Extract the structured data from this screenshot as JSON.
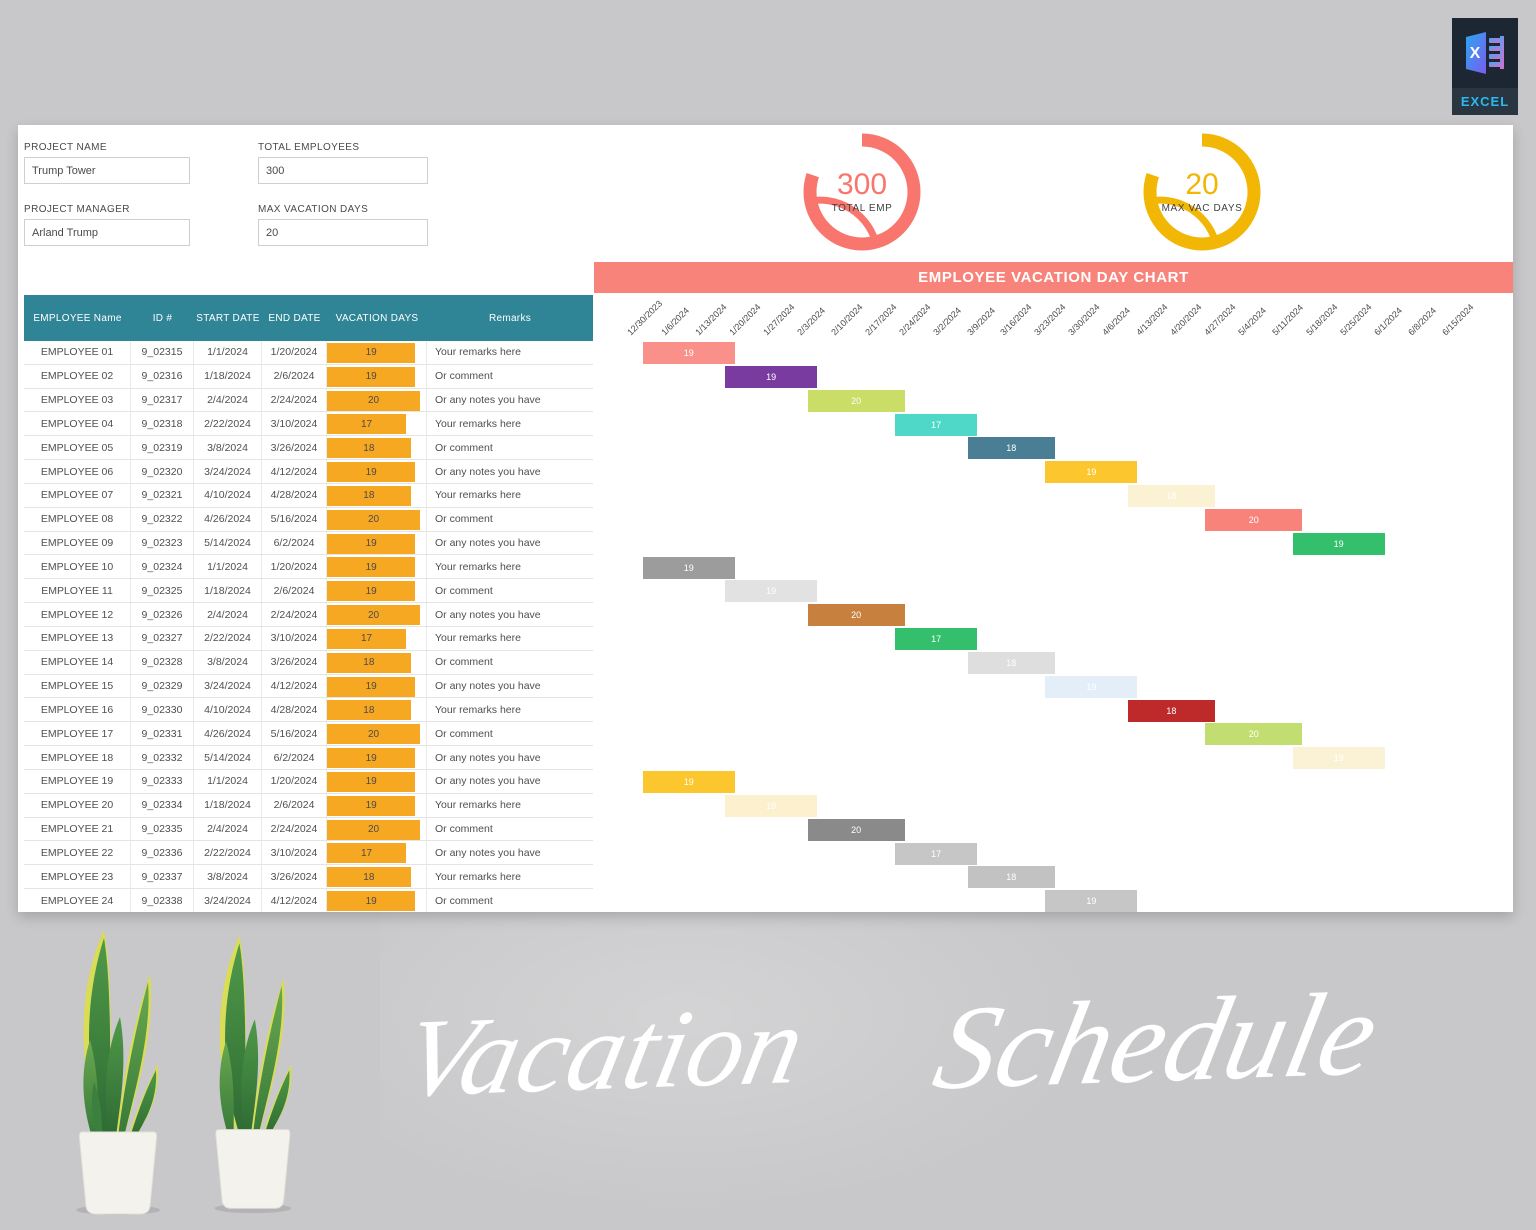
{
  "colors": {
    "accent_banner": "#f8837b",
    "table_header": "#2f8495",
    "databar": "#f7a823",
    "kpi_red": "#f8766d",
    "kpi_yellow": "#f2b705",
    "page_bg": "#c8c7c9"
  },
  "logo": {
    "label": "EXCEL",
    "icon": "excel-x-sheet-icon"
  },
  "watermark": {
    "word1": "Vacation",
    "word2": "Schedule"
  },
  "form": {
    "fields": [
      {
        "label": "PROJECT NAME",
        "value": "Trump Tower"
      },
      {
        "label": "TOTAL EMPLOYEES",
        "value": "300"
      },
      {
        "label": "PROJECT MANAGER",
        "value": "Arland Trump"
      },
      {
        "label": "MAX VACATION DAYS",
        "value": "20"
      }
    ]
  },
  "kpis": [
    {
      "value": "300",
      "label": "TOTAL EMP",
      "color": "#f8766d"
    },
    {
      "value": "20",
      "label": "MAX VAC DAYS",
      "color": "#f2b705"
    }
  ],
  "table": {
    "headers": [
      "EMPLOYEE Name",
      "ID #",
      "START DATE",
      "END DATE",
      "VACATION DAYS",
      "Remarks"
    ],
    "max_vacation_days": 20
  },
  "chart_data": {
    "type": "gantt",
    "title": "EMPLOYEE VACATION DAY CHART",
    "x_axis_labels": [
      "12/30/2023",
      "1/6/2024",
      "1/13/2024",
      "1/20/2024",
      "1/27/2024",
      "2/3/2024",
      "2/10/2024",
      "2/17/2024",
      "2/24/2024",
      "3/2/2024",
      "3/9/2024",
      "3/16/2024",
      "3/23/2024",
      "3/30/2024",
      "4/6/2024",
      "4/13/2024",
      "4/20/2024",
      "4/27/2024",
      "5/4/2024",
      "5/11/2024",
      "5/18/2024",
      "5/25/2024",
      "6/1/2024",
      "6/8/2024",
      "6/15/2024"
    ],
    "bars": [
      {
        "name": "EMPLOYEE 01",
        "id": "9_02315",
        "start": "1/1/2024",
        "end": "1/20/2024",
        "days": 19,
        "remark": "Your remarks here",
        "color": "#f9918a"
      },
      {
        "name": "EMPLOYEE 02",
        "id": "9_02316",
        "start": "1/18/2024",
        "end": "2/6/2024",
        "days": 19,
        "remark": "Or comment",
        "color": "#7a3ba0"
      },
      {
        "name": "EMPLOYEE 03",
        "id": "9_02317",
        "start": "2/4/2024",
        "end": "2/24/2024",
        "days": 20,
        "remark": "Or any notes you have",
        "color": "#c9dd67"
      },
      {
        "name": "EMPLOYEE 04",
        "id": "9_02318",
        "start": "2/22/2024",
        "end": "3/10/2024",
        "days": 17,
        "remark": "Your remarks here",
        "color": "#4fd8c8"
      },
      {
        "name": "EMPLOYEE 05",
        "id": "9_02319",
        "start": "3/8/2024",
        "end": "3/26/2024",
        "days": 18,
        "remark": "Or comment",
        "color": "#4a7e95"
      },
      {
        "name": "EMPLOYEE 06",
        "id": "9_02320",
        "start": "3/24/2024",
        "end": "4/12/2024",
        "days": 19,
        "remark": "Or any notes you have",
        "color": "#fcc62f"
      },
      {
        "name": "EMPLOYEE 07",
        "id": "9_02321",
        "start": "4/10/2024",
        "end": "4/28/2024",
        "days": 18,
        "remark": "Your remarks here",
        "color": "#fbf2d4"
      },
      {
        "name": "EMPLOYEE 08",
        "id": "9_02322",
        "start": "4/26/2024",
        "end": "5/16/2024",
        "days": 20,
        "remark": "Or comment",
        "color": "#f8837b"
      },
      {
        "name": "EMPLOYEE 09",
        "id": "9_02323",
        "start": "5/14/2024",
        "end": "6/2/2024",
        "days": 19,
        "remark": "Or any notes you have",
        "color": "#33bf6b"
      },
      {
        "name": "EMPLOYEE 10",
        "id": "9_02324",
        "start": "1/1/2024",
        "end": "1/20/2024",
        "days": 19,
        "remark": "Your remarks here",
        "color": "#9c9c9c"
      },
      {
        "name": "EMPLOYEE 11",
        "id": "9_02325",
        "start": "1/18/2024",
        "end": "2/6/2024",
        "days": 19,
        "remark": "Or comment",
        "color": "#e2e2e2"
      },
      {
        "name": "EMPLOYEE 12",
        "id": "9_02326",
        "start": "2/4/2024",
        "end": "2/24/2024",
        "days": 20,
        "remark": "Or any notes you have",
        "color": "#c8803f"
      },
      {
        "name": "EMPLOYEE 13",
        "id": "9_02327",
        "start": "2/22/2024",
        "end": "3/10/2024",
        "days": 17,
        "remark": "Your remarks here",
        "color": "#33bf6b"
      },
      {
        "name": "EMPLOYEE 14",
        "id": "9_02328",
        "start": "3/8/2024",
        "end": "3/26/2024",
        "days": 18,
        "remark": "Or comment",
        "color": "#dedede"
      },
      {
        "name": "EMPLOYEE 15",
        "id": "9_02329",
        "start": "3/24/2024",
        "end": "4/12/2024",
        "days": 19,
        "remark": "Or any notes you have",
        "color": "#e3eef9"
      },
      {
        "name": "EMPLOYEE 16",
        "id": "9_02330",
        "start": "4/10/2024",
        "end": "4/28/2024",
        "days": 18,
        "remark": "Your remarks here",
        "color": "#be2a2a"
      },
      {
        "name": "EMPLOYEE 17",
        "id": "9_02331",
        "start": "4/26/2024",
        "end": "5/16/2024",
        "days": 20,
        "remark": "Or comment",
        "color": "#c3de70"
      },
      {
        "name": "EMPLOYEE 18",
        "id": "9_02332",
        "start": "5/14/2024",
        "end": "6/2/2024",
        "days": 19,
        "remark": "Or any notes you have",
        "color": "#fbf2d6"
      },
      {
        "name": "EMPLOYEE 19",
        "id": "9_02333",
        "start": "1/1/2024",
        "end": "1/20/2024",
        "days": 19,
        "remark": "Or any notes you have",
        "color": "#fcc62f"
      },
      {
        "name": "EMPLOYEE 20",
        "id": "9_02334",
        "start": "1/18/2024",
        "end": "2/6/2024",
        "days": 19,
        "remark": "Your remarks here",
        "color": "#fcf0ce"
      },
      {
        "name": "EMPLOYEE 21",
        "id": "9_02335",
        "start": "2/4/2024",
        "end": "2/24/2024",
        "days": 20,
        "remark": "Or comment",
        "color": "#8a8a8a"
      },
      {
        "name": "EMPLOYEE 22",
        "id": "9_02336",
        "start": "2/22/2024",
        "end": "3/10/2024",
        "days": 17,
        "remark": "Or any notes you have",
        "color": "#c6c6c6"
      },
      {
        "name": "EMPLOYEE 23",
        "id": "9_02337",
        "start": "3/8/2024",
        "end": "3/26/2024",
        "days": 18,
        "remark": "Your remarks here",
        "color": "#c2c2c2"
      },
      {
        "name": "EMPLOYEE 24",
        "id": "9_02338",
        "start": "3/24/2024",
        "end": "4/12/2024",
        "days": 19,
        "remark": "Or comment",
        "color": "#c6c6c6"
      }
    ]
  }
}
